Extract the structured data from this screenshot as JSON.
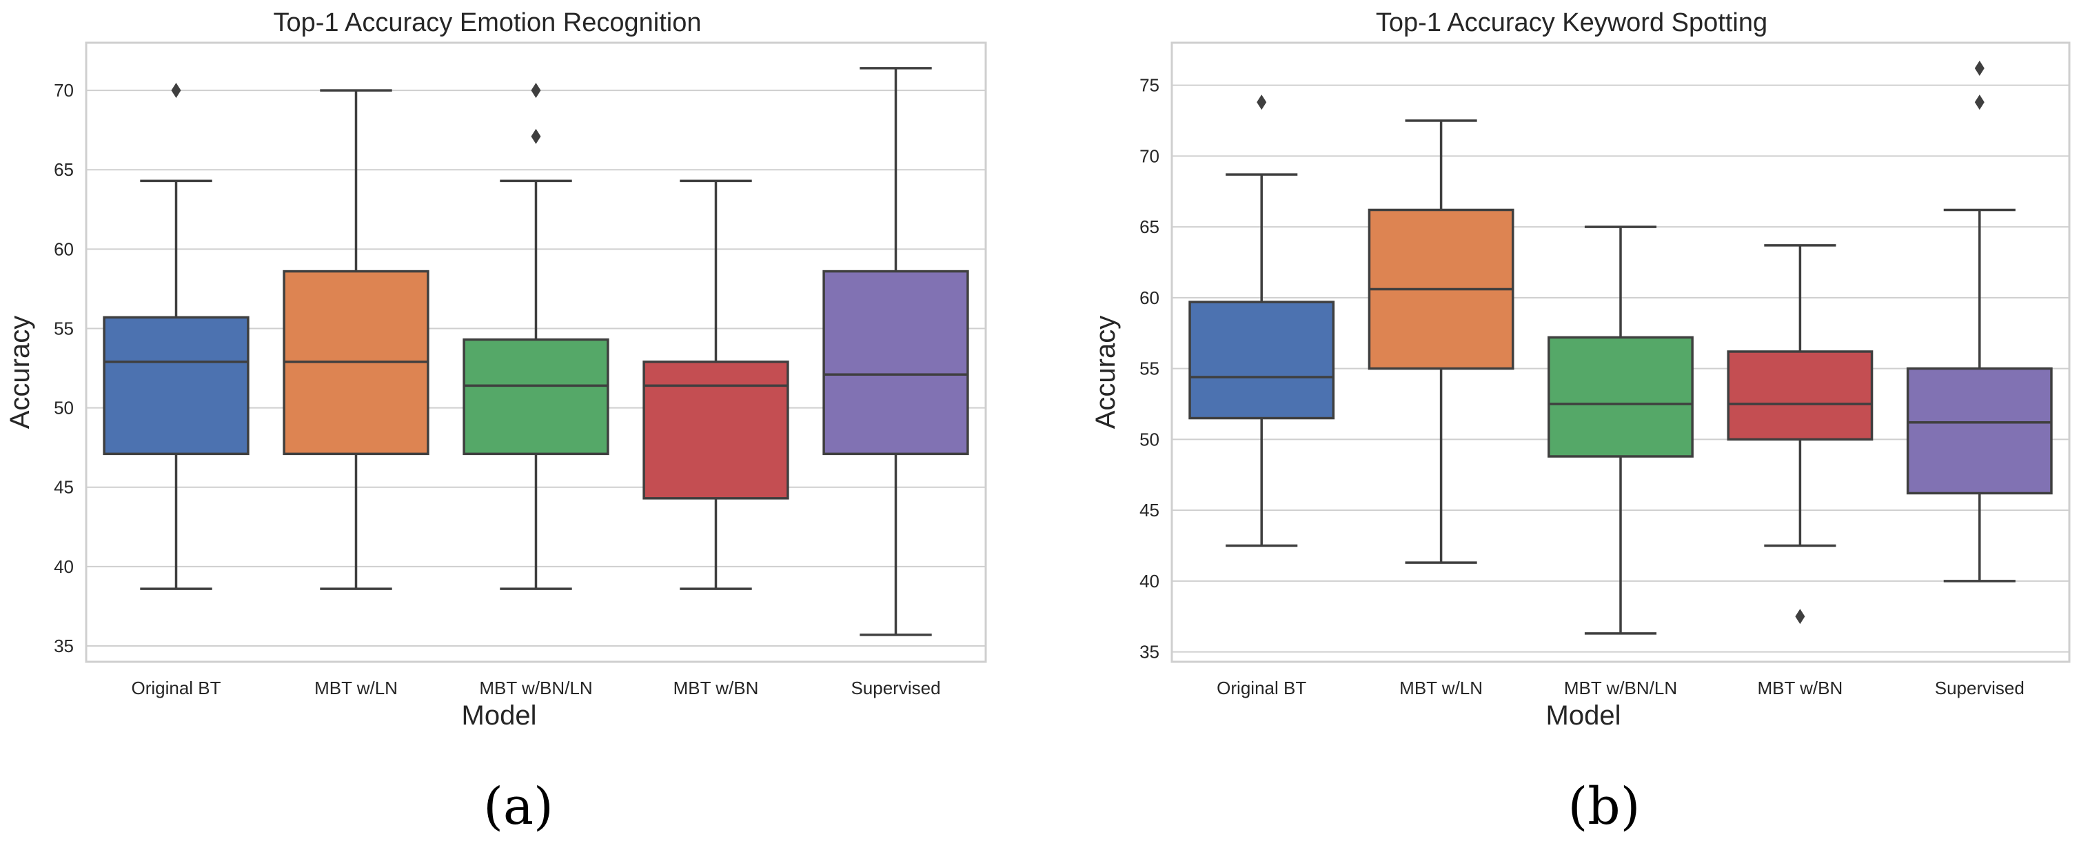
{
  "chart_data": [
    {
      "type": "box",
      "title": "Top-1 Accuracy Emotion Recognition",
      "xlabel": "Model",
      "ylabel": "Accuracy",
      "ylim": [
        34,
        73
      ],
      "yticks": [
        35,
        40,
        45,
        50,
        55,
        60,
        65,
        70
      ],
      "grid": true,
      "panel_label": "(a)",
      "series": [
        {
          "name": "Original BT",
          "color": "#4c72b0",
          "whisker_low": 38.6,
          "q1": 47.1,
          "median": 52.9,
          "q3": 55.7,
          "whisker_high": 64.3,
          "outliers": [
            70.0
          ]
        },
        {
          "name": "MBT w/LN",
          "color": "#dd8452",
          "whisker_low": 38.6,
          "q1": 47.1,
          "median": 52.9,
          "q3": 58.6,
          "whisker_high": 70.0,
          "outliers": []
        },
        {
          "name": "MBT w/BN/LN",
          "color": "#55a868",
          "whisker_low": 38.6,
          "q1": 47.1,
          "median": 51.4,
          "q3": 54.3,
          "whisker_high": 64.3,
          "outliers": [
            67.1,
            70.0
          ]
        },
        {
          "name": "MBT w/BN",
          "color": "#c44e52",
          "whisker_low": 38.6,
          "q1": 44.3,
          "median": 51.4,
          "q3": 52.9,
          "whisker_high": 64.3,
          "outliers": []
        },
        {
          "name": "Supervised",
          "color": "#8172b3",
          "whisker_low": 35.7,
          "q1": 47.1,
          "median": 52.1,
          "q3": 58.6,
          "whisker_high": 71.4,
          "outliers": []
        }
      ]
    },
    {
      "type": "box",
      "title": "Top-1 Accuracy Keyword Spotting",
      "xlabel": "Model",
      "ylabel": "Accuracy",
      "ylim": [
        34.3,
        78
      ],
      "yticks": [
        35,
        40,
        45,
        50,
        55,
        60,
        65,
        70,
        75
      ],
      "grid": true,
      "panel_label": "(b)",
      "series": [
        {
          "name": "Original BT",
          "color": "#4c72b0",
          "whisker_low": 42.5,
          "q1": 51.5,
          "median": 54.4,
          "q3": 59.7,
          "whisker_high": 68.7,
          "outliers": [
            73.8
          ]
        },
        {
          "name": "MBT w/LN",
          "color": "#dd8452",
          "whisker_low": 41.3,
          "q1": 55.0,
          "median": 60.6,
          "q3": 66.2,
          "whisker_high": 72.5,
          "outliers": []
        },
        {
          "name": "MBT w/BN/LN",
          "color": "#55a868",
          "whisker_low": 36.3,
          "q1": 48.8,
          "median": 52.5,
          "q3": 57.2,
          "whisker_high": 65.0,
          "outliers": []
        },
        {
          "name": "MBT w/BN",
          "color": "#c44e52",
          "whisker_low": 42.5,
          "q1": 50.0,
          "median": 52.5,
          "q3": 56.2,
          "whisker_high": 63.7,
          "outliers": [
            37.5
          ]
        },
        {
          "name": "Supervised",
          "color": "#8172b3",
          "whisker_low": 40.0,
          "q1": 46.2,
          "median": 51.2,
          "q3": 55.0,
          "whisker_high": 66.2,
          "outliers": [
            73.8,
            76.2
          ]
        }
      ]
    }
  ]
}
